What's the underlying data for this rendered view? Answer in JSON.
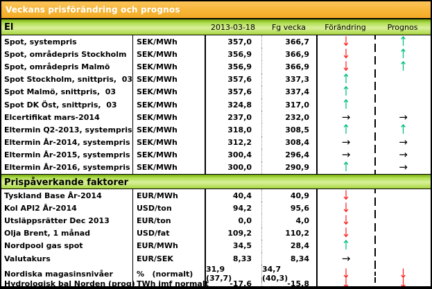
{
  "title": "Veckans prisförändring och prognos",
  "columns": {
    "date": "2013-03-18",
    "prev": "Fg vecka",
    "change": "Förändring",
    "forecast": "Prognos"
  },
  "colors": {
    "up": "#00bf7f",
    "down": "#ff2222",
    "flat": "#000000",
    "title_bg": "#f6b434",
    "section_bg": "#aede4e"
  },
  "arrow_glyphs": {
    "up": "↑",
    "down": "↓",
    "flat": "→",
    "none": ""
  },
  "sections": [
    {
      "name": "El",
      "rows": [
        {
          "label": "Spot, systempris",
          "unit": "SEK/MWh",
          "current": "357,0",
          "prev": "366,7",
          "change": "down",
          "forecast": "up"
        },
        {
          "label": "Spot, områdepris Stockholm",
          "unit": "SEK/MWh",
          "current": "356,9",
          "prev": "366,9",
          "change": "down",
          "forecast": "up"
        },
        {
          "label": "Spot, områdepris Malmö",
          "unit": "SEK/MWh",
          "current": "356,9",
          "prev": "366,9",
          "change": "down",
          "forecast": "up"
        },
        {
          "label": "Spot Stockholm, snittpris,  03",
          "unit": "SEK/MWh",
          "current": "357,6",
          "prev": "337,3",
          "change": "up",
          "forecast": "none"
        },
        {
          "label": "Spot Malmö, snittpris,  03",
          "unit": "SEK/MWh",
          "current": "357,6",
          "prev": "337,4",
          "change": "up",
          "forecast": "none"
        },
        {
          "label": "Spot DK Öst, snittpris,  03",
          "unit": "SEK/MWh",
          "current": "324,8",
          "prev": "317,0",
          "change": "up",
          "forecast": "none"
        },
        {
          "label": "Elcertifikat mars-2014",
          "unit": "SEK/MWh",
          "current": "237,0",
          "prev": "232,0",
          "change": "flat",
          "forecast": "flat"
        },
        {
          "label": "Eltermin Q2-2013, systempris",
          "unit": "SEK/MWh",
          "current": "318,0",
          "prev": "308,5",
          "change": "up",
          "forecast": "up"
        },
        {
          "label": "Eltermin År-2014, systempris",
          "unit": "SEK/MWh",
          "current": "312,2",
          "prev": "308,4",
          "change": "flat",
          "forecast": "flat"
        },
        {
          "label": "Eltermin År-2015, systempris",
          "unit": "SEK/MWh",
          "current": "300,4",
          "prev": "296,4",
          "change": "flat",
          "forecast": "flat"
        },
        {
          "label": "Eltermin År-2016, systempris",
          "unit": "SEK/MWh",
          "current": "300,0",
          "prev": "290,9",
          "change": "up",
          "forecast": "flat"
        }
      ]
    },
    {
      "name": "Prispåverkande faktorer",
      "rows": [
        {
          "label": "Tyskland Base År-2014",
          "unit": "EUR/MWh",
          "current": "40,4",
          "prev": "40,9",
          "change": "down",
          "forecast": "none"
        },
        {
          "label": "Kol API2 År-2014",
          "unit": "USD/ton",
          "current": "94,2",
          "prev": "95,6",
          "change": "down",
          "forecast": "none"
        },
        {
          "label": "Utsläppsrätter Dec 2013",
          "unit": "EUR/ton",
          "current": "0,0",
          "prev": "4,0",
          "change": "down",
          "forecast": "none"
        },
        {
          "label": "Olja Brent, 1 månad",
          "unit": "USD/fat",
          "current": "109,2",
          "prev": "110,2",
          "change": "down",
          "forecast": "none"
        },
        {
          "label": "Nordpool gas spot",
          "unit": "EUR/MWh",
          "current": "34,5",
          "prev": "28,4",
          "change": "up",
          "forecast": "none"
        },
        {
          "label": "Valutakurs",
          "unit": "EUR/SEK",
          "current": "8,33",
          "prev": "8,34",
          "change": "flat",
          "forecast": "none"
        },
        {
          "label": "Nordiska magasinsnivåer",
          "unit": "%   (normalt)",
          "current": "31,9 (37,7)",
          "prev": "34,7 (40,3)",
          "change": "down",
          "forecast": "down"
        },
        {
          "label": "Hydrologisk bal Norden (prog)",
          "unit": "TWh jmf normalt",
          "current": "-17,6",
          "prev": "-15,8",
          "change": "down",
          "forecast": "down"
        }
      ]
    }
  ],
  "overrides": {
    "tyskland_change": "flat"
  }
}
